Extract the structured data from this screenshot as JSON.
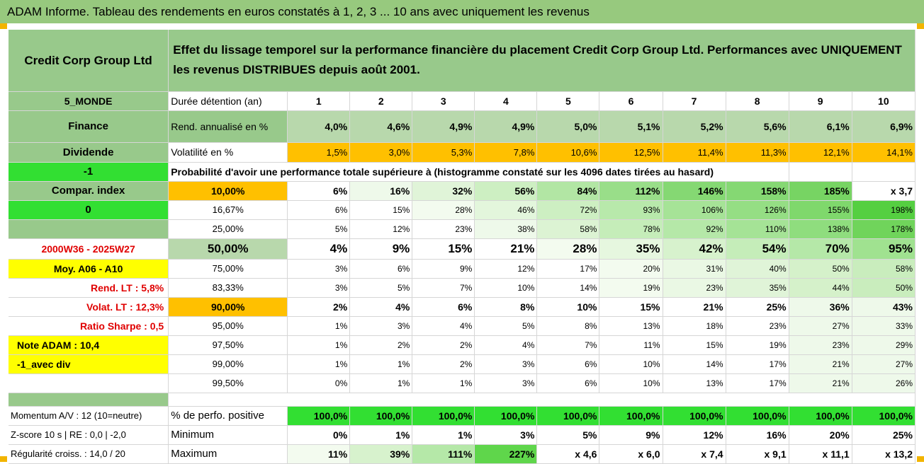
{
  "header": {
    "title": "ADAM Informe. Tableau des rendements en euros constatés à 1, 2, 3 ... 10 ans avec uniquement les revenus"
  },
  "left": {
    "company": "Credit Corp Group Ltd",
    "region": "5_MONDE",
    "sector": "Finance",
    "dividend": "Dividende",
    "flag": "-1",
    "compar": "Compar. index",
    "zero": "0",
    "period": "2000W36 - 2025W27",
    "moy": "Moy. A06 - A10",
    "rend_lt": "Rend. LT :    5,8%",
    "volat_lt": "Volat. LT :    12,3%",
    "sharpe": "Ratio Sharpe :    0,5",
    "note": "Note ADAM : 10,4",
    "avec_div": "-1_avec div",
    "momentum": "Momentum A/V : 12 (10=neutre)",
    "zscore": "Z-score 10 s | RE : 0,0 | -2,0",
    "regularite": "Régularité croiss. : 14,0 / 20"
  },
  "description": "Effet du lissage temporel sur la performance financière du placement Credit Corp Group Ltd. Performances avec UNIQUEMENT les revenus DISTRIBUES depuis août 2001.",
  "labels": {
    "duree": "Durée détention (an)",
    "rend": "Rend. annualisé en %",
    "volat": "Volatilité en %",
    "probabilite": "Probabilité d'avoir une performance totale supérieure à (histogramme constaté sur les 4096 dates tirées au hasard)",
    "perfo_positive": "% de perfo. positive",
    "minimum": "Minimum",
    "maximum": "Maximum"
  },
  "years": [
    "1",
    "2",
    "3",
    "4",
    "5",
    "6",
    "7",
    "8",
    "9",
    "10"
  ],
  "rend": [
    "4,0%",
    "4,6%",
    "4,9%",
    "4,9%",
    "5,0%",
    "5,1%",
    "5,2%",
    "5,6%",
    "6,1%",
    "6,9%"
  ],
  "volat": [
    "1,5%",
    "3,0%",
    "5,3%",
    "7,8%",
    "10,6%",
    "12,5%",
    "11,4%",
    "11,3%",
    "12,1%",
    "14,1%"
  ],
  "prob_rows": [
    {
      "threshold": "10,00%",
      "values": [
        "6%",
        "16%",
        "32%",
        "56%",
        "84%",
        "112%",
        "146%",
        "158%",
        "185%",
        "x 3,7"
      ]
    },
    {
      "threshold": "16,67%",
      "values": [
        "6%",
        "15%",
        "28%",
        "46%",
        "72%",
        "93%",
        "106%",
        "126%",
        "155%",
        "198%"
      ]
    },
    {
      "threshold": "25,00%",
      "values": [
        "5%",
        "12%",
        "23%",
        "38%",
        "58%",
        "78%",
        "92%",
        "110%",
        "138%",
        "178%"
      ]
    },
    {
      "threshold": "50,00%",
      "values": [
        "4%",
        "9%",
        "15%",
        "21%",
        "28%",
        "35%",
        "42%",
        "54%",
        "70%",
        "95%"
      ]
    },
    {
      "threshold": "75,00%",
      "values": [
        "3%",
        "6%",
        "9%",
        "12%",
        "17%",
        "20%",
        "31%",
        "40%",
        "50%",
        "58%"
      ]
    },
    {
      "threshold": "83,33%",
      "values": [
        "3%",
        "5%",
        "7%",
        "10%",
        "14%",
        "19%",
        "23%",
        "35%",
        "44%",
        "50%"
      ]
    },
    {
      "threshold": "90,00%",
      "values": [
        "2%",
        "4%",
        "6%",
        "8%",
        "10%",
        "15%",
        "21%",
        "25%",
        "36%",
        "43%"
      ]
    },
    {
      "threshold": "95,00%",
      "values": [
        "1%",
        "3%",
        "4%",
        "5%",
        "8%",
        "13%",
        "18%",
        "23%",
        "27%",
        "33%"
      ]
    },
    {
      "threshold": "97,50%",
      "values": [
        "1%",
        "2%",
        "2%",
        "4%",
        "7%",
        "11%",
        "15%",
        "19%",
        "23%",
        "29%"
      ]
    },
    {
      "threshold": "99,00%",
      "values": [
        "1%",
        "1%",
        "2%",
        "3%",
        "6%",
        "10%",
        "14%",
        "17%",
        "21%",
        "27%"
      ]
    },
    {
      "threshold": "99,50%",
      "values": [
        "0%",
        "1%",
        "1%",
        "3%",
        "6%",
        "10%",
        "13%",
        "17%",
        "21%",
        "26%"
      ]
    }
  ],
  "perfo_positive": [
    "100,0%",
    "100,0%",
    "100,0%",
    "100,0%",
    "100,0%",
    "100,0%",
    "100,0%",
    "100,0%",
    "100,0%",
    "100,0%"
  ],
  "minimum": [
    "0%",
    "1%",
    "1%",
    "3%",
    "5%",
    "9%",
    "12%",
    "16%",
    "20%",
    "25%"
  ],
  "maximum": [
    "11%",
    "39%",
    "111%",
    "227%",
    "x 4,6",
    "x 6,0",
    "x 7,4",
    "x 9,1",
    "x 11,1",
    "x 13,2"
  ],
  "colors": {
    "header_green": "#97c97e",
    "label_green": "#98c98b",
    "orange": "#ffc000",
    "yellow": "#ffff00",
    "bright_green": "#32df32",
    "red_text": "#e00000"
  }
}
